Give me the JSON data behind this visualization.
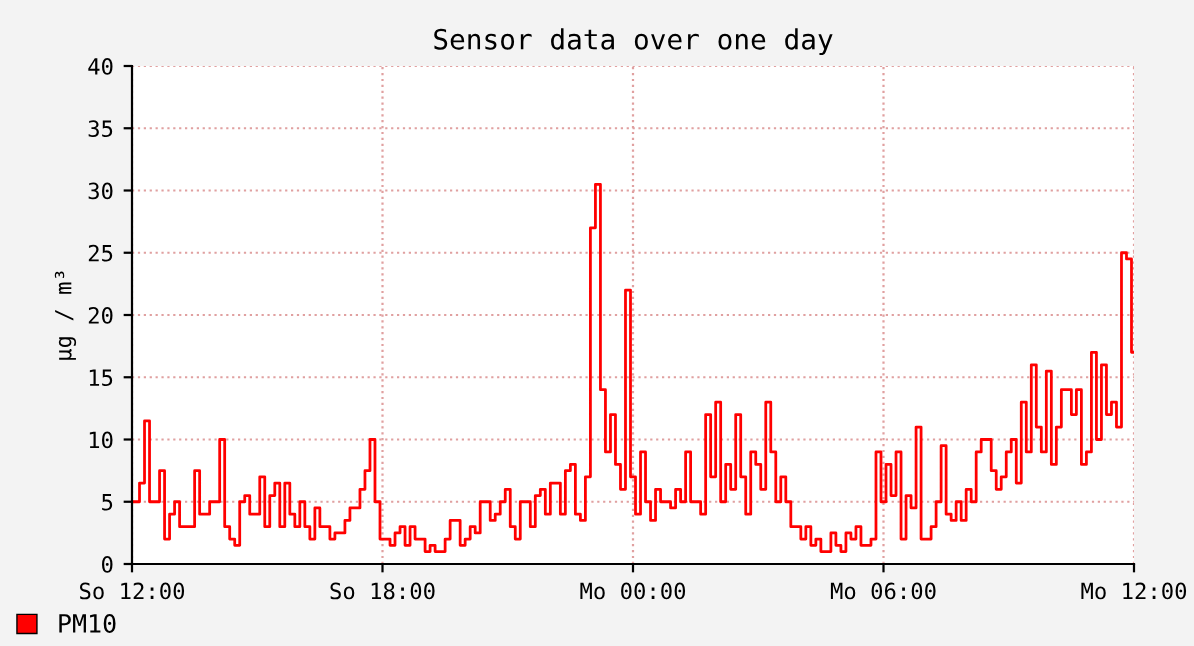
{
  "chart_data": {
    "type": "step",
    "title": "Sensor data over one day",
    "ylabel": "µg / m³",
    "categories": [
      "So 12:00",
      null,
      null,
      null,
      null,
      null,
      null,
      null,
      null,
      null,
      null,
      null,
      null,
      null,
      null,
      null,
      null,
      null,
      null,
      null,
      null,
      null,
      null,
      null,
      null,
      null,
      null,
      null,
      null,
      null,
      null,
      null,
      null,
      null,
      null,
      null,
      null,
      null,
      null,
      null,
      null,
      null,
      null,
      null,
      null,
      null,
      null,
      null,
      null,
      null,
      "So 18:00",
      null,
      null,
      null,
      null,
      null,
      null,
      null,
      null,
      null,
      null,
      null,
      null,
      null,
      null,
      null,
      null,
      null,
      null,
      null,
      null,
      null,
      null,
      null,
      null,
      null,
      null,
      null,
      null,
      null,
      null,
      null,
      null,
      null,
      null,
      null,
      null,
      null,
      null,
      null,
      null,
      null,
      null,
      null,
      null,
      null,
      null,
      null,
      null,
      null,
      "Mo 00:00",
      null,
      null,
      null,
      null,
      null,
      null,
      null,
      null,
      null,
      null,
      null,
      null,
      null,
      null,
      null,
      null,
      null,
      null,
      null,
      null,
      null,
      null,
      null,
      null,
      null,
      null,
      null,
      null,
      null,
      null,
      null,
      null,
      null,
      null,
      null,
      null,
      null,
      null,
      null,
      null,
      null,
      null,
      null,
      null,
      null,
      null,
      null,
      null,
      null,
      "Mo 06:00",
      null,
      null,
      null,
      null,
      null,
      null,
      null,
      null,
      null,
      null,
      null,
      null,
      null,
      null,
      null,
      null,
      null,
      null,
      null,
      null,
      null,
      null,
      null,
      null,
      null,
      null,
      null,
      null,
      null,
      null,
      null,
      null,
      null,
      null,
      null,
      null,
      null,
      null,
      null,
      null,
      null,
      null,
      null,
      null,
      null,
      null,
      null,
      null,
      null,
      "Mo 12:00"
    ],
    "series": [
      {
        "name": "PM10",
        "color": "#ff0000",
        "values": [
          5,
          5,
          6.5,
          11.5,
          5,
          5,
          7.5,
          2,
          4,
          5,
          3,
          3,
          3,
          7.5,
          4,
          4,
          5,
          5,
          10,
          3,
          2,
          1.5,
          5,
          5.5,
          4,
          4,
          7,
          3,
          5.5,
          6.5,
          3,
          6.5,
          4,
          3,
          5,
          3,
          2,
          4.5,
          3,
          3,
          2,
          2.5,
          2.5,
          3.5,
          4.5,
          4.5,
          6,
          7.5,
          10,
          5,
          2,
          2,
          1.5,
          2.5,
          3,
          1.5,
          3,
          2,
          2,
          1,
          1.5,
          1,
          1,
          2,
          3.5,
          3.5,
          1.5,
          2,
          3,
          2.5,
          5,
          5,
          3.5,
          4,
          5,
          6,
          3,
          2,
          5,
          5,
          3,
          5.5,
          6,
          4,
          6.5,
          6.5,
          4,
          7.5,
          8,
          4,
          3.5,
          7,
          27,
          30.5,
          14,
          9,
          12,
          8,
          6,
          22,
          7,
          4,
          9,
          5,
          3.5,
          6,
          5,
          5,
          4.5,
          6,
          5,
          9,
          5,
          5,
          4,
          12,
          7,
          13,
          5,
          8,
          6,
          12,
          7,
          4,
          9,
          8,
          6,
          13,
          9,
          5,
          7,
          5,
          3,
          3,
          2,
          3,
          1.5,
          2,
          1,
          1,
          2.5,
          1.5,
          1,
          2.5,
          2,
          3,
          1.5,
          1.5,
          2,
          9,
          5,
          8,
          5.5,
          9,
          2,
          5.5,
          4.5,
          11,
          2,
          2,
          3,
          5,
          9.5,
          4,
          3.5,
          5,
          3.5,
          6,
          5,
          9,
          10,
          10,
          7.5,
          6,
          7,
          9,
          10,
          6.5,
          13,
          9,
          16,
          11,
          9,
          15.5,
          8,
          11,
          14,
          14,
          12,
          14,
          8,
          9,
          17,
          10,
          16,
          12,
          13,
          11,
          25,
          24.5,
          17
        ]
      }
    ],
    "ylim": [
      0,
      40
    ],
    "yticks": [
      0,
      5,
      10,
      15,
      20,
      25,
      30,
      35,
      40
    ],
    "grid": true,
    "legend": "bottom left"
  }
}
